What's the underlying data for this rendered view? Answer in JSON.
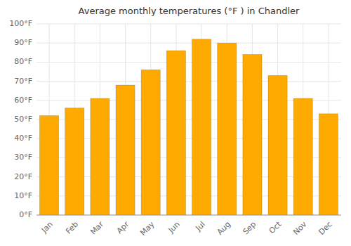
{
  "chart_data": {
    "type": "bar",
    "title": "Average monthly temperatures (°F ) in Chandler",
    "categories": [
      "Jan",
      "Feb",
      "Mar",
      "Apr",
      "May",
      "Jun",
      "Jul",
      "Aug",
      "Sep",
      "Oct",
      "Nov",
      "Dec"
    ],
    "values": [
      52,
      56,
      61,
      68,
      76,
      86,
      92,
      90,
      84,
      73,
      61,
      53
    ],
    "color": "#FFAA00",
    "ylim": [
      0,
      100
    ],
    "yticks": [
      {
        "value": 0,
        "label": "0°F"
      },
      {
        "value": 10,
        "label": "10°F"
      },
      {
        "value": 20,
        "label": "20°F"
      },
      {
        "value": 30,
        "label": "30°F"
      },
      {
        "value": 40,
        "label": "40°F"
      },
      {
        "value": 50,
        "label": "50°F"
      },
      {
        "value": 60,
        "label": "60°F"
      },
      {
        "value": 70,
        "label": "70°F"
      },
      {
        "value": 80,
        "label": "80°F"
      },
      {
        "value": 90,
        "label": "90°F"
      },
      {
        "value": 100,
        "label": "100°F"
      }
    ],
    "grid": true
  }
}
